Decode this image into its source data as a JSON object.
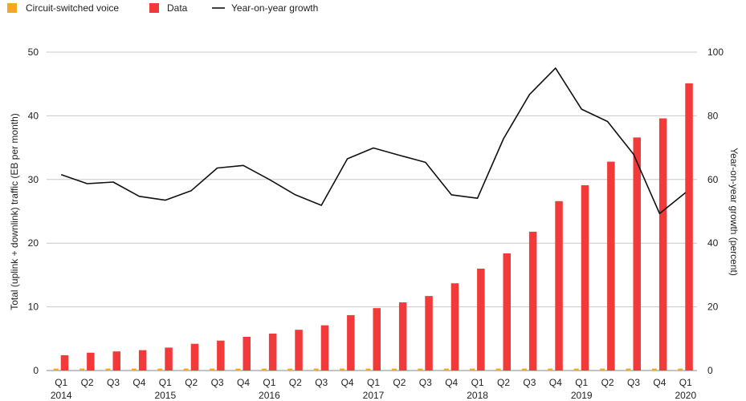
{
  "chart_data": {
    "type": "bar",
    "categories": [
      "Q1",
      "Q2",
      "Q3",
      "Q4",
      "Q1",
      "Q2",
      "Q3",
      "Q4",
      "Q1",
      "Q2",
      "Q3",
      "Q4",
      "Q1",
      "Q2",
      "Q3",
      "Q4",
      "Q1",
      "Q2",
      "Q3",
      "Q4",
      "Q1",
      "Q2",
      "Q3",
      "Q4",
      "Q1"
    ],
    "years": [
      {
        "label": "2014",
        "index": 0
      },
      {
        "label": "2015",
        "index": 4
      },
      {
        "label": "2016",
        "index": 8
      },
      {
        "label": "2017",
        "index": 12
      },
      {
        "label": "2018",
        "index": 16
      },
      {
        "label": "2019",
        "index": 20
      },
      {
        "label": "2020",
        "index": 24
      }
    ],
    "series": [
      {
        "name": "Circuit-switched voice",
        "type": "bar",
        "color": "#f5a623",
        "values": [
          0.3,
          0.3,
          0.3,
          0.3,
          0.3,
          0.3,
          0.3,
          0.3,
          0.3,
          0.3,
          0.3,
          0.3,
          0.3,
          0.3,
          0.3,
          0.3,
          0.3,
          0.3,
          0.3,
          0.3,
          0.3,
          0.3,
          0.3,
          0.3,
          0.3
        ]
      },
      {
        "name": "Data",
        "type": "bar",
        "color": "#f23a3a",
        "values": [
          2.4,
          2.8,
          3.0,
          3.2,
          3.6,
          4.2,
          4.7,
          5.3,
          5.8,
          6.4,
          7.1,
          8.7,
          9.8,
          10.7,
          11.7,
          13.7,
          16.0,
          18.4,
          21.8,
          26.6,
          29.1,
          32.8,
          36.6,
          39.6,
          45.1
        ]
      },
      {
        "name": "Year-on-year growth",
        "type": "line",
        "axis": "right",
        "color": "#111111",
        "values": [
          61.5,
          58.7,
          59.2,
          54.7,
          53.5,
          56.5,
          63.6,
          64.4,
          60.0,
          55.2,
          51.9,
          66.5,
          69.9,
          67.6,
          65.4,
          55.2,
          54.1,
          72.8,
          86.7,
          95.0,
          82.1,
          78.2,
          67.9,
          49.3,
          55.9
        ]
      }
    ],
    "ylabel": "Total (uplink + downlink) traffic (EB per month)",
    "ylabel_right": "Year-on-year growth (percent)",
    "ylim": [
      0,
      50
    ],
    "yticks": [
      0,
      10,
      20,
      30,
      40,
      50
    ],
    "ylim_right": [
      0,
      100
    ],
    "yticks_right": [
      0,
      20,
      40,
      60,
      80,
      100
    ],
    "grid": true,
    "legend_position": "top-left"
  }
}
